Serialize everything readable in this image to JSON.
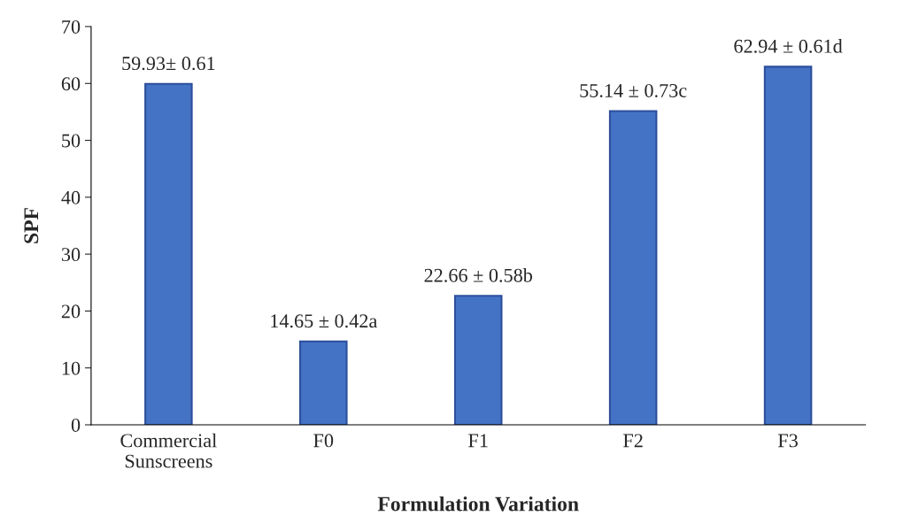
{
  "chart_data": {
    "type": "bar",
    "xlabel": "Formulation Variation",
    "ylabel": "SPF",
    "categories": [
      "Commercial\nSunscreens",
      "F0",
      "F1",
      "F2",
      "F3"
    ],
    "values": [
      59.93,
      14.65,
      22.66,
      55.14,
      62.94
    ],
    "value_labels": [
      "59.93± 0.61",
      "14.65 ± 0.42a",
      "22.66 ± 0.58b",
      "55.14 ± 0.73c",
      "62.94 ± 0.61d"
    ],
    "color": "#4472c4",
    "ylim": [
      0,
      70
    ],
    "yticks": [
      0,
      10,
      20,
      30,
      40,
      50,
      60,
      70
    ],
    "grid": false,
    "legend": false
  }
}
